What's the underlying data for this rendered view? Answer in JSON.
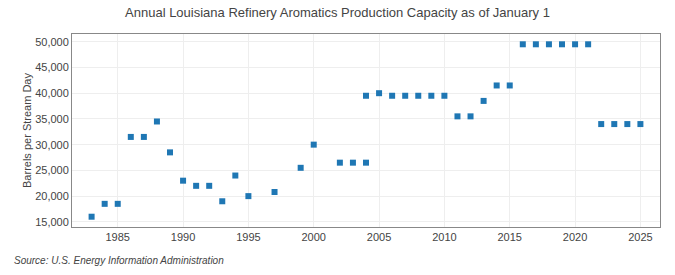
{
  "chart_data": {
    "type": "scatter",
    "title": "Annual Louisiana Refinery Aromatics Production Capacity as of January 1",
    "ylabel": "Barrels per Stream Day",
    "annotations": [
      "Source: U.S. Energy Information Administration"
    ],
    "marker": "square",
    "grid": true,
    "xlim": [
      1981.5,
      2026.5
    ],
    "xticks": [
      1985,
      1990,
      1995,
      2000,
      2005,
      2010,
      2015,
      2020,
      2025
    ],
    "ylim": [
      14000,
      51500
    ],
    "yticks": [
      {
        "value": 15000,
        "label": "15,000"
      },
      {
        "value": 20000,
        "label": "20,000"
      },
      {
        "value": 25000,
        "label": "25,000"
      },
      {
        "value": 30000,
        "label": "30,000"
      },
      {
        "value": 35000,
        "label": "35,000"
      },
      {
        "value": 40000,
        "label": "40,000"
      },
      {
        "value": 45000,
        "label": "45,000"
      },
      {
        "value": 50000,
        "label": "50,000"
      }
    ],
    "x": [
      1983,
      1984,
      1985,
      1986,
      1987,
      1988,
      1989,
      1990,
      1991,
      1992,
      1993,
      1994,
      1995,
      1997,
      1999,
      2000,
      2002,
      2003,
      2004,
      2004,
      2005,
      2006,
      2007,
      2008,
      2009,
      2010,
      2011,
      2012,
      2013,
      2014,
      2015,
      2016,
      2017,
      2018,
      2019,
      2020,
      2021,
      2022,
      2023,
      2024,
      2025
    ],
    "values": [
      16000,
      18500,
      18500,
      31500,
      31500,
      34500,
      28500,
      23000,
      22000,
      22000,
      19000,
      24000,
      20000,
      20800,
      25500,
      30000,
      26500,
      26500,
      26500,
      39500,
      40000,
      39500,
      39500,
      39500,
      39500,
      39500,
      35500,
      35500,
      38500,
      41500,
      41500,
      49500,
      49500,
      49500,
      49500,
      49500,
      49500,
      34000,
      34000,
      34000,
      34000
    ]
  }
}
